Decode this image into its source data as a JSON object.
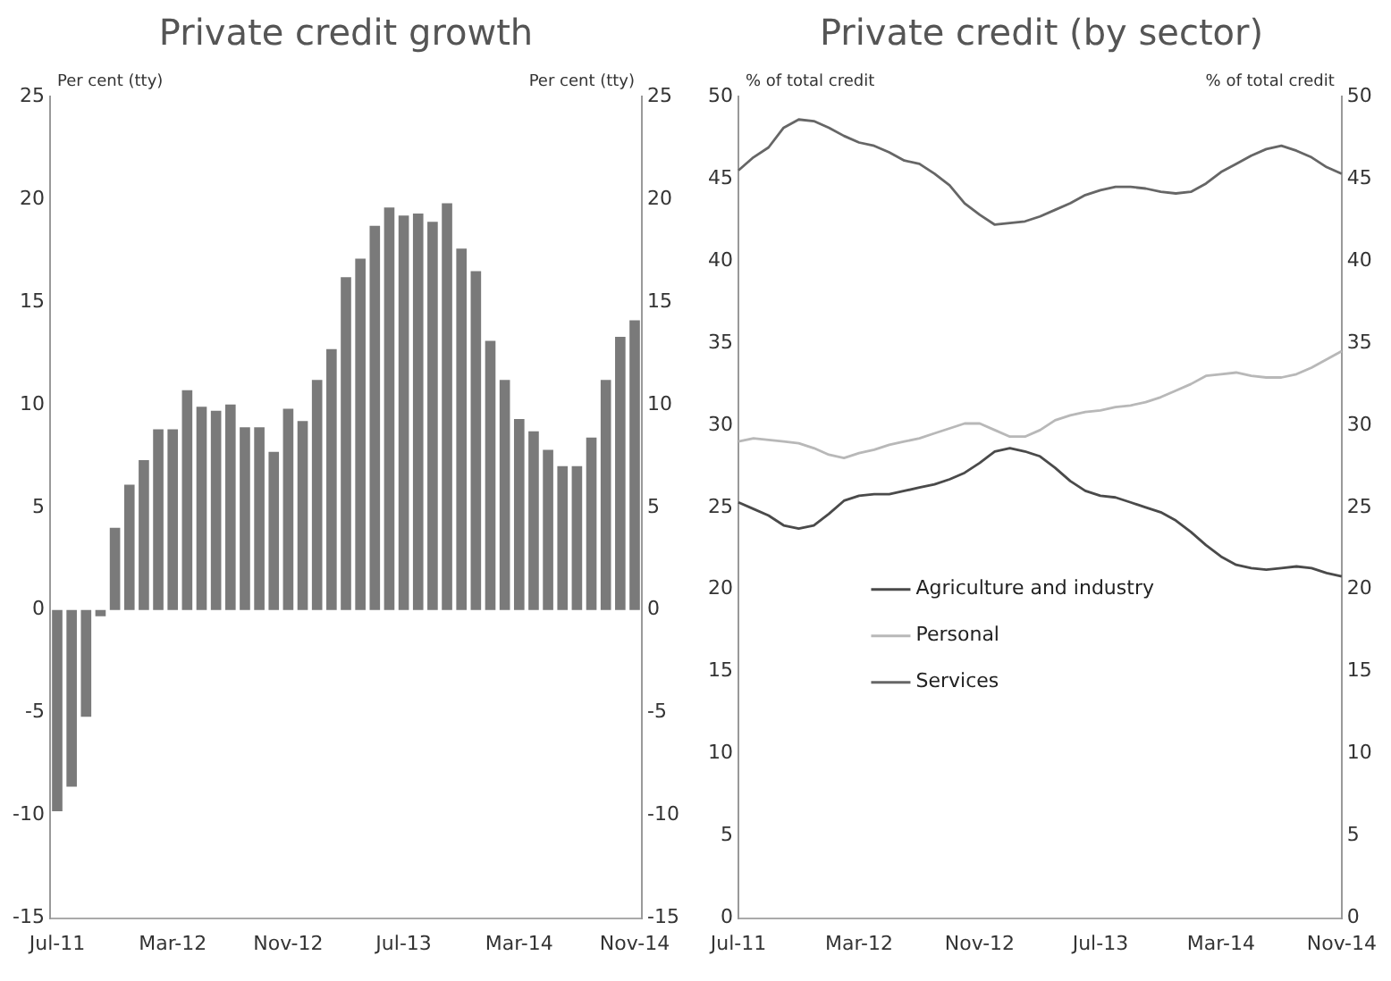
{
  "chart_data": [
    {
      "type": "bar",
      "title": "Private credit growth",
      "ylabel": "Per cent (tty)",
      "y2label": "Per cent (tty)",
      "categories": [
        "Jul-11",
        null,
        null,
        null,
        null,
        null,
        null,
        null,
        "Mar-12",
        null,
        null,
        null,
        null,
        null,
        null,
        null,
        "Nov-12",
        null,
        null,
        null,
        null,
        null,
        null,
        null,
        "Jul-13",
        null,
        null,
        null,
        null,
        null,
        null,
        null,
        "Mar-14",
        null,
        null,
        null,
        null,
        null,
        null,
        null,
        "Nov-14"
      ],
      "series": [
        {
          "color": "#7a7a7a",
          "values": [
            -9.8,
            -8.6,
            -5.2,
            -0.3,
            4.0,
            6.1,
            7.3,
            8.8,
            8.8,
            10.7,
            9.9,
            9.7,
            10.0,
            8.9,
            8.9,
            7.7,
            9.8,
            9.2,
            11.2,
            12.7,
            16.2,
            17.1,
            18.7,
            19.6,
            19.2,
            19.3,
            18.9,
            19.8,
            17.6,
            16.5,
            13.1,
            11.2,
            9.3,
            8.7,
            7.8,
            7.0,
            7.0,
            8.4,
            11.2,
            13.3,
            14.1
          ]
        }
      ],
      "ylim": [
        -15,
        25
      ],
      "yticks": [
        -15,
        -10,
        -5,
        0,
        5,
        10,
        15,
        20,
        25
      ],
      "y2lim": [
        -15,
        25
      ],
      "y2ticks": [
        -15,
        -10,
        -5,
        0,
        5,
        10,
        15,
        20,
        25
      ],
      "grid": false,
      "legend": false
    },
    {
      "type": "line",
      "title": "Private credit (by sector)",
      "ylabel": "% of total credit",
      "y2label": "% of total credit",
      "categories": [
        "Jul-11",
        null,
        null,
        null,
        null,
        null,
        null,
        null,
        "Mar-12",
        null,
        null,
        null,
        null,
        null,
        null,
        null,
        "Nov-12",
        null,
        null,
        null,
        null,
        null,
        null,
        null,
        "Jul-13",
        null,
        null,
        null,
        null,
        null,
        null,
        null,
        "Mar-14",
        null,
        null,
        null,
        null,
        null,
        null,
        null,
        "Nov-14"
      ],
      "series": [
        {
          "name": "Agriculture and industry",
          "color": "#4a4a4a",
          "values": [
            25.3,
            24.9,
            24.5,
            23.9,
            23.7,
            23.9,
            24.6,
            25.4,
            25.7,
            25.8,
            25.8,
            26.0,
            26.2,
            26.4,
            26.7,
            27.1,
            27.7,
            28.4,
            28.6,
            28.4,
            28.1,
            27.4,
            26.6,
            26.0,
            25.7,
            25.6,
            25.3,
            25.0,
            24.7,
            24.2,
            23.5,
            22.7,
            22.0,
            21.5,
            21.3,
            21.2,
            21.3,
            21.4,
            21.3,
            21.0,
            20.8
          ]
        },
        {
          "name": "Personal",
          "color": "#b8b8b8",
          "values": [
            29.0,
            29.2,
            29.1,
            29.0,
            28.9,
            28.6,
            28.2,
            28.0,
            28.3,
            28.5,
            28.8,
            29.0,
            29.2,
            29.5,
            29.8,
            30.1,
            30.1,
            29.7,
            29.3,
            29.3,
            29.7,
            30.3,
            30.6,
            30.8,
            30.9,
            31.1,
            31.2,
            31.4,
            31.7,
            32.1,
            32.5,
            33.0,
            33.1,
            33.2,
            33.0,
            32.9,
            32.9,
            33.1,
            33.5,
            34.0,
            34.5
          ]
        },
        {
          "name": "Services",
          "color": "#666666",
          "values": [
            45.5,
            46.3,
            46.9,
            48.1,
            48.6,
            48.5,
            48.1,
            47.6,
            47.2,
            47.0,
            46.6,
            46.1,
            45.9,
            45.3,
            44.6,
            43.5,
            42.8,
            42.2,
            42.3,
            42.4,
            42.7,
            43.1,
            43.5,
            44.0,
            44.3,
            44.5,
            44.5,
            44.4,
            44.2,
            44.1,
            44.2,
            44.7,
            45.4,
            45.9,
            46.4,
            46.8,
            47.0,
            46.7,
            46.3,
            45.7,
            45.3
          ]
        }
      ],
      "ylim": [
        0,
        50
      ],
      "yticks": [
        0,
        5,
        10,
        15,
        20,
        25,
        30,
        35,
        40,
        45,
        50
      ],
      "y2lim": [
        0,
        50
      ],
      "y2ticks": [
        0,
        5,
        10,
        15,
        20,
        25,
        30,
        35,
        40,
        45,
        50
      ],
      "grid": false,
      "legend": "left"
    }
  ]
}
